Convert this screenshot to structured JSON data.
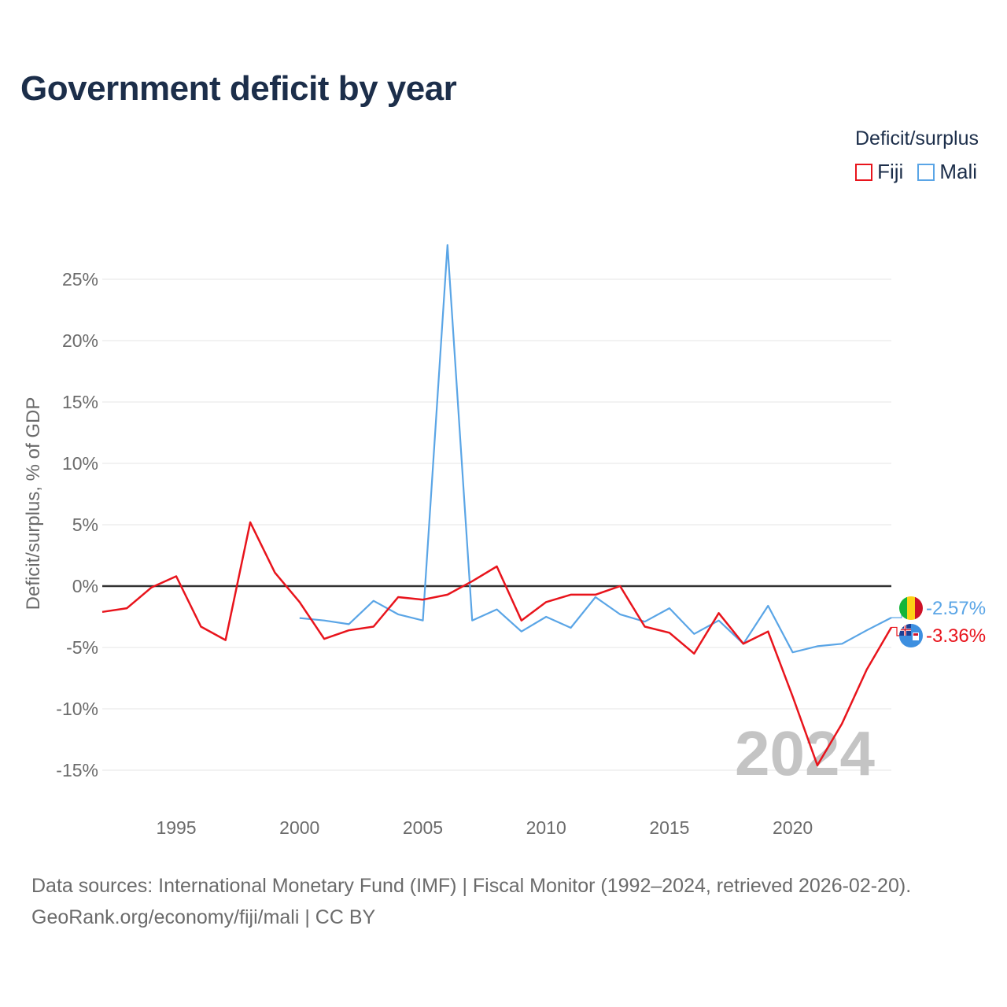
{
  "title": "Government deficit by year",
  "legend": {
    "title": "Deficit/surplus",
    "items": [
      {
        "name": "Fiji",
        "color": "#e8141c"
      },
      {
        "name": "Mali",
        "color": "#5aa5e6"
      }
    ]
  },
  "source": {
    "line1": "Data sources: International Monetary Fund (IMF) | Fiscal Monitor (1992–2024, retrieved 2026-02-20).",
    "line2": "GeoRank.org/economy/fiji/mali | CC BY"
  },
  "chart_data": {
    "type": "line",
    "title": "Government deficit by year",
    "ylabel": "Deficit/surplus, % of GDP",
    "xlabel": "",
    "xlim": [
      1992,
      2024
    ],
    "ylim": [
      -17,
      29
    ],
    "x_ticks": [
      1995,
      2000,
      2005,
      2010,
      2015,
      2020
    ],
    "x_tick_labels": [
      "1995",
      "2000",
      "2005",
      "2010",
      "2015",
      "2020"
    ],
    "y_ticks": [
      -15,
      -10,
      -5,
      0,
      5,
      10,
      15,
      20,
      25
    ],
    "y_tick_labels": [
      "-15%",
      "-10%",
      "-5%",
      "0%",
      "5%",
      "10%",
      "15%",
      "20%",
      "25%"
    ],
    "watermark_year": "2024",
    "series": [
      {
        "name": "Fiji",
        "color": "#e8141c",
        "end_label": "-3.36%",
        "flag_icon": "fiji-flag-icon",
        "points": [
          [
            1992,
            -2.1
          ],
          [
            1993,
            -1.8
          ],
          [
            1994,
            -0.1
          ],
          [
            1995,
            0.8
          ],
          [
            1996,
            -3.3
          ],
          [
            1997,
            -4.4
          ],
          [
            1998,
            5.2
          ],
          [
            1999,
            1.1
          ],
          [
            2000,
            -1.3
          ],
          [
            2001,
            -4.3
          ],
          [
            2002,
            -3.6
          ],
          [
            2003,
            -3.3
          ],
          [
            2004,
            -0.9
          ],
          [
            2005,
            -1.1
          ],
          [
            2006,
            -0.7
          ],
          [
            2007,
            0.4
          ],
          [
            2008,
            1.6
          ],
          [
            2009,
            -2.8
          ],
          [
            2010,
            -1.3
          ],
          [
            2011,
            -0.7
          ],
          [
            2012,
            -0.7
          ],
          [
            2013,
            0.0
          ],
          [
            2014,
            -3.3
          ],
          [
            2015,
            -3.8
          ],
          [
            2016,
            -5.5
          ],
          [
            2017,
            -2.2
          ],
          [
            2018,
            -4.7
          ],
          [
            2019,
            -3.7
          ],
          [
            2020,
            -9.0
          ],
          [
            2021,
            -14.6
          ],
          [
            2022,
            -11.2
          ],
          [
            2023,
            -6.8
          ],
          [
            2024,
            -3.36
          ]
        ]
      },
      {
        "name": "Mali",
        "color": "#5aa5e6",
        "end_label": "-2.57%",
        "flag_icon": "mali-flag-icon",
        "points": [
          [
            2000,
            -2.6
          ],
          [
            2001,
            -2.8
          ],
          [
            2002,
            -3.1
          ],
          [
            2003,
            -1.2
          ],
          [
            2004,
            -2.3
          ],
          [
            2005,
            -2.8
          ],
          [
            2006,
            27.8
          ],
          [
            2007,
            -2.8
          ],
          [
            2008,
            -1.9
          ],
          [
            2009,
            -3.7
          ],
          [
            2010,
            -2.5
          ],
          [
            2011,
            -3.4
          ],
          [
            2012,
            -0.9
          ],
          [
            2013,
            -2.3
          ],
          [
            2014,
            -2.9
          ],
          [
            2015,
            -1.8
          ],
          [
            2016,
            -3.9
          ],
          [
            2017,
            -2.8
          ],
          [
            2018,
            -4.7
          ],
          [
            2019,
            -1.6
          ],
          [
            2020,
            -5.4
          ],
          [
            2021,
            -4.9
          ],
          [
            2022,
            -4.7
          ],
          [
            2023,
            -3.6
          ],
          [
            2024,
            -2.57
          ]
        ]
      }
    ]
  }
}
